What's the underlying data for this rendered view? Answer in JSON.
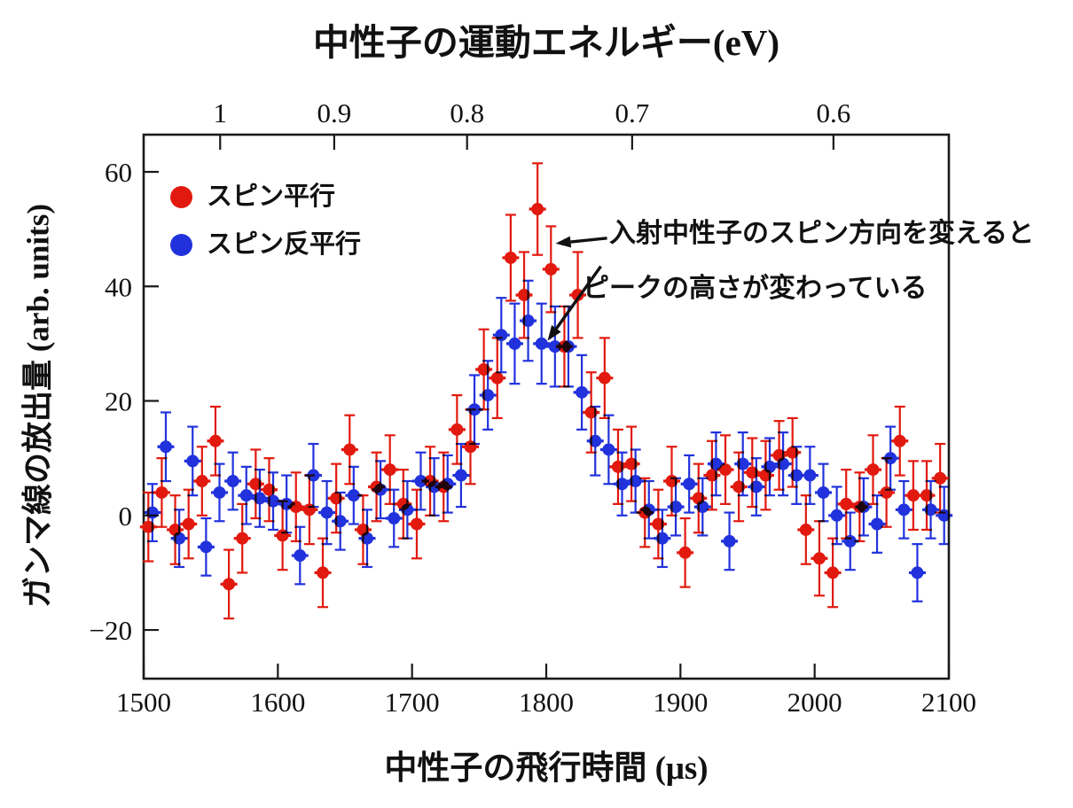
{
  "figure": {
    "top_axis_title": "中性子の運動エネルギー(eV)",
    "x_axis_title": "中性子の飛行時間 (μs)",
    "y_axis_title": "ガンマ線の放出量 (arb. units)"
  },
  "legend": {
    "items": [
      {
        "label": "スピン平行",
        "color": "#e2190e"
      },
      {
        "label": "スピン反平行",
        "color": "#2132dc"
      }
    ]
  },
  "annotation": {
    "line1": "入射中性子のスピン方向を変えると",
    "line2": "ピークの高さが変わっている"
  },
  "chart_data": {
    "type": "scatter",
    "title": "中性子の運動エネルギー(eV)",
    "xlabel": "中性子の飛行時間 (μs)",
    "ylabel": "ガンマ線の放出量 (arb. units)",
    "xlim": [
      1500,
      2100
    ],
    "ylim": [
      -28.5,
      66.5
    ],
    "x_ticks": [
      1500,
      1600,
      1700,
      1800,
      1900,
      2000,
      2100
    ],
    "y_ticks": [
      -20,
      0,
      20,
      40,
      60
    ],
    "grid": false,
    "legend_position": "upper-left-inside",
    "frame_color": "#1a1a1a",
    "top_axis": {
      "label": "中性子の運動エネルギー(eV)",
      "unit": "eV",
      "ticks": [
        {
          "label": "1",
          "t": 1557
        },
        {
          "label": "0.9",
          "t": 1642
        },
        {
          "label": "0.8",
          "t": 1741
        },
        {
          "label": "0.7",
          "t": 1864
        },
        {
          "label": "0.6",
          "t": 2014
        }
      ]
    },
    "annotations": [
      {
        "text": "入射中性子のスピン方向を変えると",
        "arrow_tip": {
          "t": 1807,
          "v": 47.5
        },
        "tail_offset": [
          58,
          -6
        ]
      },
      {
        "text": "ピークの高さが変わっている",
        "arrow_tip": {
          "t": 1801,
          "v": 30.5
        },
        "tail_offset": [
          60,
          -84
        ]
      }
    ],
    "series": [
      {
        "name": "スピン平行",
        "color": "#e2190e",
        "x_offset_us": -1.5,
        "points": [
          [
            1505,
            -2,
            6
          ],
          [
            1515,
            4,
            6
          ],
          [
            1525,
            -2.5,
            6
          ],
          [
            1535,
            -1.5,
            6
          ],
          [
            1545,
            6,
            6
          ],
          [
            1555,
            13,
            6
          ],
          [
            1565,
            -12,
            6
          ],
          [
            1575,
            -4,
            6
          ],
          [
            1585,
            5.5,
            6
          ],
          [
            1595,
            4.5,
            5.5
          ],
          [
            1605,
            -3.5,
            6
          ],
          [
            1615,
            1.5,
            6
          ],
          [
            1625,
            1,
            6
          ],
          [
            1635,
            -10,
            6
          ],
          [
            1645,
            3,
            6
          ],
          [
            1655,
            11.5,
            6
          ],
          [
            1665,
            -2.5,
            6
          ],
          [
            1675,
            5,
            6
          ],
          [
            1685,
            8,
            6
          ],
          [
            1695,
            2,
            6
          ],
          [
            1705,
            -1.5,
            6
          ],
          [
            1715,
            6,
            6
          ],
          [
            1725,
            5,
            6
          ],
          [
            1735,
            15,
            6
          ],
          [
            1745,
            12,
            6.5
          ],
          [
            1755,
            25.5,
            7
          ],
          [
            1765,
            24,
            7
          ],
          [
            1775,
            45,
            7.5
          ],
          [
            1785,
            38.5,
            7.5
          ],
          [
            1795,
            53.5,
            8
          ],
          [
            1805,
            43,
            7.5
          ],
          [
            1815,
            29.5,
            7
          ],
          [
            1825,
            38.5,
            7.5
          ],
          [
            1835,
            18,
            7
          ],
          [
            1845,
            24,
            7
          ],
          [
            1855,
            8.5,
            6.5
          ],
          [
            1865,
            9,
            6.5
          ],
          [
            1875,
            0.5,
            6
          ],
          [
            1885,
            -1.5,
            6
          ],
          [
            1895,
            6,
            6
          ],
          [
            1905,
            -6.5,
            6
          ],
          [
            1915,
            3,
            6
          ],
          [
            1925,
            7,
            6
          ],
          [
            1935,
            8,
            6
          ],
          [
            1945,
            5,
            6
          ],
          [
            1955,
            7.5,
            6
          ],
          [
            1965,
            7,
            6
          ],
          [
            1975,
            10.5,
            6
          ],
          [
            1985,
            11,
            6
          ],
          [
            1995,
            -2.5,
            6
          ],
          [
            2005,
            -7.5,
            6.5
          ],
          [
            2015,
            -10,
            6
          ],
          [
            2025,
            2,
            6
          ],
          [
            2035,
            1.5,
            6
          ],
          [
            2045,
            8,
            6
          ],
          [
            2055,
            4,
            6
          ],
          [
            2065,
            13,
            6
          ],
          [
            2075,
            3.5,
            6
          ],
          [
            2085,
            3.5,
            6
          ],
          [
            2095,
            6.5,
            6
          ]
        ]
      },
      {
        "name": "スピン反平行",
        "color": "#2132dc",
        "x_offset_us": 1.5,
        "points": [
          [
            1505,
            0.5,
            5
          ],
          [
            1515,
            12,
            6
          ],
          [
            1525,
            -4,
            5
          ],
          [
            1535,
            9.5,
            6
          ],
          [
            1545,
            -5.5,
            5
          ],
          [
            1555,
            4,
            5
          ],
          [
            1565,
            6,
            5
          ],
          [
            1575,
            3.5,
            5
          ],
          [
            1585,
            3,
            5
          ],
          [
            1595,
            2.5,
            5
          ],
          [
            1605,
            2,
            5
          ],
          [
            1615,
            -7,
            5
          ],
          [
            1625,
            7,
            5.5
          ],
          [
            1635,
            0.5,
            5.5
          ],
          [
            1645,
            -1,
            5
          ],
          [
            1655,
            3.5,
            5
          ],
          [
            1665,
            -4,
            5
          ],
          [
            1675,
            4.5,
            5
          ],
          [
            1685,
            -0.5,
            5
          ],
          [
            1695,
            1,
            5
          ],
          [
            1705,
            6,
            5
          ],
          [
            1715,
            5,
            5
          ],
          [
            1725,
            5.5,
            5
          ],
          [
            1735,
            7,
            5.5
          ],
          [
            1745,
            18.5,
            6
          ],
          [
            1755,
            21,
            6
          ],
          [
            1765,
            31.5,
            6.5
          ],
          [
            1775,
            30,
            7
          ],
          [
            1785,
            34,
            7
          ],
          [
            1795,
            30,
            7
          ],
          [
            1805,
            29.5,
            7
          ],
          [
            1815,
            29.5,
            7
          ],
          [
            1825,
            21.5,
            6.5
          ],
          [
            1835,
            13,
            6
          ],
          [
            1845,
            11.5,
            6
          ],
          [
            1855,
            5.5,
            5.5
          ],
          [
            1865,
            6,
            5.5
          ],
          [
            1875,
            1,
            5
          ],
          [
            1885,
            -4,
            5
          ],
          [
            1895,
            1.5,
            5
          ],
          [
            1905,
            5.5,
            5
          ],
          [
            1915,
            1.5,
            5
          ],
          [
            1925,
            9,
            5.5
          ],
          [
            1935,
            -4.5,
            5
          ],
          [
            1945,
            9,
            5.5
          ],
          [
            1955,
            5,
            5
          ],
          [
            1965,
            8.5,
            5
          ],
          [
            1975,
            9,
            5.5
          ],
          [
            1985,
            7,
            5
          ],
          [
            1995,
            7,
            5
          ],
          [
            2005,
            4,
            5
          ],
          [
            2015,
            0,
            5
          ],
          [
            2025,
            -4.5,
            5
          ],
          [
            2035,
            1.5,
            5
          ],
          [
            2045,
            -1.5,
            5
          ],
          [
            2055,
            10,
            5.5
          ],
          [
            2065,
            1,
            5
          ],
          [
            2075,
            -10,
            5
          ],
          [
            2085,
            1,
            5
          ],
          [
            2095,
            0,
            5
          ]
        ]
      }
    ]
  }
}
